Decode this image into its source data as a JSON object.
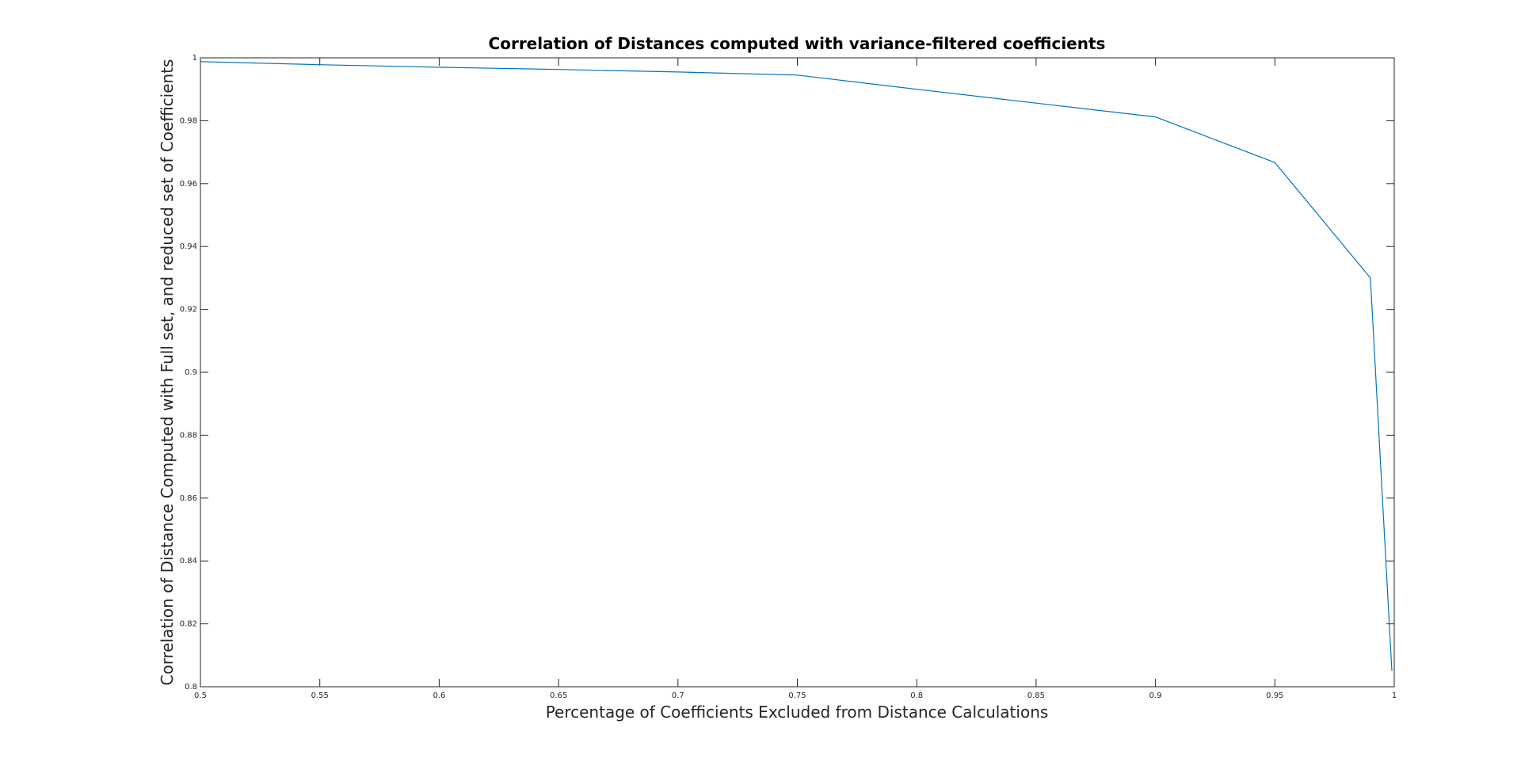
{
  "chart_data": {
    "type": "line",
    "title": "Correlation of Distances computed with variance-filtered coefficients",
    "xlabel": "Percentage of Coefficients Excluded from Distance Calculations",
    "ylabel": "Correlation of Distance Computed with Full set, and reduced set of Coefficients",
    "xlim": [
      0.5,
      1
    ],
    "ylim": [
      0.8,
      1
    ],
    "xticks": [
      0.5,
      0.55,
      0.6,
      0.65,
      0.7,
      0.75,
      0.8,
      0.85,
      0.9,
      0.95,
      1
    ],
    "xtick_labels": [
      "0.5",
      "0.55",
      "0.6",
      "0.65",
      "0.7",
      "0.75",
      "0.8",
      "0.85",
      "0.9",
      "0.95",
      "1"
    ],
    "yticks": [
      0.8,
      0.82,
      0.84,
      0.86,
      0.88,
      0.9,
      0.92,
      0.94,
      0.96,
      0.98,
      1
    ],
    "ytick_labels": [
      "0.8",
      "0.82",
      "0.84",
      "0.86",
      "0.88",
      "0.9",
      "0.92",
      "0.94",
      "0.96",
      "0.98",
      "1"
    ],
    "grid": false,
    "series": [
      {
        "color": "#0072BD",
        "x": [
          0.5,
          0.55,
          0.6,
          0.65,
          0.7,
          0.75,
          0.8,
          0.85,
          0.9,
          0.95,
          0.99,
          0.999
        ],
        "y": [
          0.9988,
          0.9978,
          0.997,
          0.9963,
          0.9955,
          0.9945,
          0.99,
          0.9856,
          0.9812,
          0.9667,
          0.93,
          0.805
        ]
      }
    ]
  }
}
